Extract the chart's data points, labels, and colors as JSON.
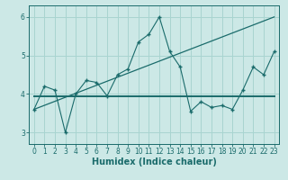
{
  "xlabel": "Humidex (Indice chaleur)",
  "ylabel": "",
  "bg_color": "#cce8e6",
  "line_color": "#1a6b6b",
  "grid_color": "#a8d4d0",
  "x_data": [
    0,
    1,
    2,
    3,
    4,
    5,
    6,
    7,
    8,
    9,
    10,
    11,
    12,
    13,
    14,
    15,
    16,
    17,
    18,
    19,
    20,
    21,
    22,
    23
  ],
  "y_data": [
    3.6,
    4.2,
    4.1,
    3.0,
    4.0,
    4.35,
    4.3,
    3.95,
    4.5,
    4.65,
    5.35,
    5.55,
    6.0,
    5.1,
    4.7,
    3.55,
    3.8,
    3.65,
    3.7,
    3.6,
    4.1,
    4.7,
    4.5,
    5.1
  ],
  "trend1_x": [
    0,
    23
  ],
  "trend1_y": [
    3.6,
    6.0
  ],
  "trend2_x": [
    0,
    23
  ],
  "trend2_y": [
    3.95,
    3.95
  ],
  "xlim": [
    -0.5,
    23.5
  ],
  "ylim": [
    2.7,
    6.3
  ],
  "yticks": [
    3,
    4,
    5,
    6
  ],
  "xticks": [
    0,
    1,
    2,
    3,
    4,
    5,
    6,
    7,
    8,
    9,
    10,
    11,
    12,
    13,
    14,
    15,
    16,
    17,
    18,
    19,
    20,
    21,
    22,
    23
  ],
  "tick_fontsize": 5.5,
  "xlabel_fontsize": 7.0
}
